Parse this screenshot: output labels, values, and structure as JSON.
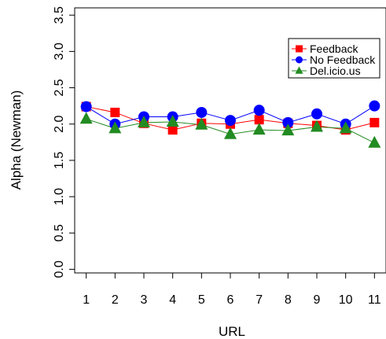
{
  "chart_data": {
    "type": "line",
    "xlabel": "URL",
    "ylabel": "Alpha (Newman)",
    "x": [
      1,
      2,
      3,
      4,
      5,
      6,
      7,
      8,
      9,
      10,
      11
    ],
    "x_tick_labels": [
      "1",
      "2",
      "3",
      "4",
      "5",
      "6",
      "7",
      "8",
      "9",
      "10",
      "11"
    ],
    "xlim": [
      0.6,
      11.4
    ],
    "ylim": [
      -0.05,
      3.6
    ],
    "y_ticks": [
      0.0,
      0.5,
      1.0,
      1.5,
      2.0,
      2.5,
      3.0,
      3.5
    ],
    "y_tick_labels": [
      "0.0",
      "0.5",
      "1.0",
      "1.5",
      "2.0",
      "2.5",
      "3.0",
      "3.5"
    ],
    "grid": false,
    "legend_position": "top-right",
    "series": [
      {
        "name": "Feedback",
        "color": "#ff0000",
        "marker": "square",
        "values": [
          2.24,
          2.16,
          2.01,
          1.92,
          2.01,
          2.0,
          2.06,
          2.01,
          1.98,
          1.92,
          2.02
        ]
      },
      {
        "name": "No Feedback",
        "color": "#0000ff",
        "marker": "circle",
        "values": [
          2.24,
          2.0,
          2.1,
          2.1,
          2.16,
          2.05,
          2.19,
          2.02,
          2.14,
          2.0,
          2.25
        ]
      },
      {
        "name": "Del.icio.us",
        "color": "#228b22",
        "marker": "triangle",
        "values": [
          2.07,
          1.94,
          2.02,
          2.03,
          1.99,
          1.86,
          1.92,
          1.91,
          1.96,
          1.94,
          1.74
        ]
      }
    ]
  }
}
